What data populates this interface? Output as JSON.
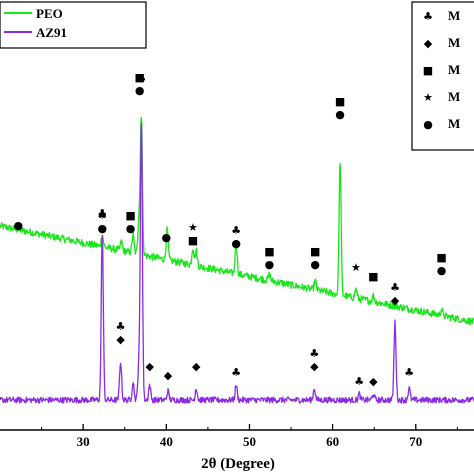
{
  "chart_data": {
    "type": "line",
    "xlabel": "2θ (Degree)",
    "x_ticks": [
      30,
      40,
      50,
      60,
      70
    ],
    "xlim": [
      20,
      77
    ],
    "y_ticks": [],
    "ylabel": "",
    "series": [
      {
        "name": "PEO",
        "color": "#19e619",
        "baseline_start": 0.64,
        "baseline_end": 0.32,
        "noise": 0.012,
        "peaks": [
          {
            "x": 32.3,
            "h": 0.04
          },
          {
            "x": 34.6,
            "h": 0.03
          },
          {
            "x": 36.0,
            "h": 0.06
          },
          {
            "x": 36.7,
            "h": 0.12
          },
          {
            "x": 37.0,
            "h": 0.47
          },
          {
            "x": 40.1,
            "h": 0.1
          },
          {
            "x": 43.2,
            "h": 0.06
          },
          {
            "x": 43.6,
            "h": 0.05
          },
          {
            "x": 48.4,
            "h": 0.11
          },
          {
            "x": 52.4,
            "h": 0.02
          },
          {
            "x": 57.9,
            "h": 0.03
          },
          {
            "x": 60.9,
            "h": 0.45
          },
          {
            "x": 62.8,
            "h": 0.03
          },
          {
            "x": 64.9,
            "h": 0.02
          },
          {
            "x": 73.1,
            "h": 0.02
          }
        ]
      },
      {
        "name": "AZ91",
        "color": "#8a2be2",
        "baseline_start": 0.06,
        "baseline_end": 0.06,
        "noise": 0.01,
        "peaks": [
          {
            "x": 32.3,
            "h": 0.56
          },
          {
            "x": 34.5,
            "h": 0.13
          },
          {
            "x": 36.0,
            "h": 0.06
          },
          {
            "x": 36.7,
            "h": 0.12
          },
          {
            "x": 37.0,
            "h": 0.94
          },
          {
            "x": 38.0,
            "h": 0.05
          },
          {
            "x": 40.2,
            "h": 0.03
          },
          {
            "x": 43.6,
            "h": 0.04
          },
          {
            "x": 48.4,
            "h": 0.05
          },
          {
            "x": 57.8,
            "h": 0.04
          },
          {
            "x": 63.2,
            "h": 0.02
          },
          {
            "x": 64.9,
            "h": 0.02
          },
          {
            "x": 67.5,
            "h": 0.26
          },
          {
            "x": 69.2,
            "h": 0.04
          }
        ]
      }
    ],
    "legend": {
      "placement": "top-left",
      "entries": [
        {
          "label": "PEO",
          "color": "#19e619"
        },
        {
          "label": "AZ91",
          "color": "#8a2be2"
        }
      ]
    },
    "phase_legend": {
      "placement": "top-right",
      "entries": [
        {
          "symbol": "♣",
          "label": "M"
        },
        {
          "symbol": "◆",
          "label": "M"
        },
        {
          "symbol": "■",
          "label": "M"
        },
        {
          "symbol": "★",
          "label": "M"
        },
        {
          "symbol": "●",
          "label": "M"
        }
      ]
    },
    "annotations": [
      {
        "x": 22.2,
        "anchor": 0.63,
        "symbols": [
          "●"
        ]
      },
      {
        "x": 32.3,
        "anchor": 0.62,
        "symbols": [
          "♣",
          "●"
        ]
      },
      {
        "x": 35.7,
        "anchor": 0.62,
        "symbols": [
          "■",
          "●"
        ]
      },
      {
        "x": 36.8,
        "anchor": 1.08,
        "symbols": [
          "■",
          "●"
        ]
      },
      {
        "x": 37.0,
        "anchor": 1.12,
        "symbols": [
          "♣"
        ]
      },
      {
        "x": 40.0,
        "anchor": 0.59,
        "symbols": [
          "●"
        ]
      },
      {
        "x": 43.2,
        "anchor": 0.58,
        "symbols": [
          "★",
          "■"
        ]
      },
      {
        "x": 48.4,
        "anchor": 0.57,
        "symbols": [
          "♣",
          "●"
        ]
      },
      {
        "x": 52.4,
        "anchor": 0.5,
        "symbols": [
          "■",
          "●"
        ]
      },
      {
        "x": 57.9,
        "anchor": 0.5,
        "symbols": [
          "■",
          "●"
        ]
      },
      {
        "x": 60.9,
        "anchor": 1.0,
        "symbols": [
          "■",
          "●"
        ]
      },
      {
        "x": 62.8,
        "anchor": 0.49,
        "symbols": [
          "★"
        ]
      },
      {
        "x": 64.9,
        "anchor": 0.46,
        "symbols": [
          "■"
        ]
      },
      {
        "x": 73.1,
        "anchor": 0.48,
        "symbols": [
          "■",
          "●"
        ]
      },
      {
        "x": 32.3,
        "anchor": 0.67,
        "symbols": [
          "♣"
        ]
      },
      {
        "x": 34.5,
        "anchor": 0.25,
        "symbols": [
          "♣",
          "◆"
        ]
      },
      {
        "x": 38.0,
        "anchor": 0.16,
        "symbols": [
          "◆"
        ]
      },
      {
        "x": 40.2,
        "anchor": 0.13,
        "symbols": [
          "◆"
        ]
      },
      {
        "x": 43.6,
        "anchor": 0.16,
        "symbols": [
          "◆"
        ]
      },
      {
        "x": 48.4,
        "anchor": 0.14,
        "symbols": [
          "♣"
        ]
      },
      {
        "x": 57.8,
        "anchor": 0.16,
        "symbols": [
          "♣",
          "◆"
        ]
      },
      {
        "x": 63.2,
        "anchor": 0.11,
        "symbols": [
          "♣"
        ]
      },
      {
        "x": 64.9,
        "anchor": 0.11,
        "symbols": [
          "◆"
        ]
      },
      {
        "x": 67.5,
        "anchor": 0.38,
        "symbols": [
          "♣",
          "◆"
        ]
      },
      {
        "x": 69.2,
        "anchor": 0.14,
        "symbols": [
          "♣"
        ]
      }
    ]
  }
}
